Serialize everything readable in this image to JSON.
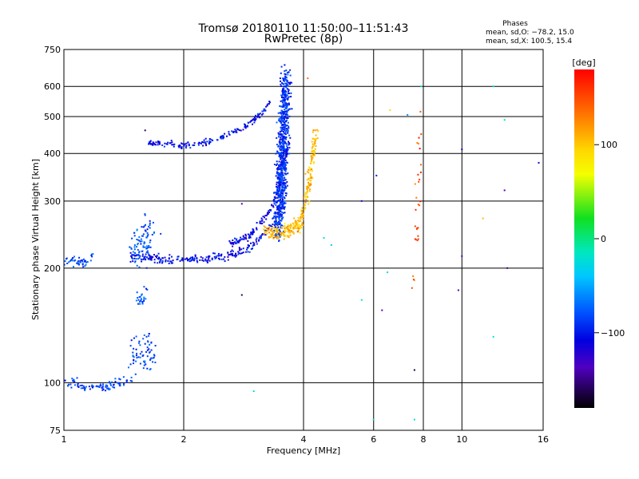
{
  "chart_data": {
    "type": "scatter",
    "title": "Tromsø 20180110 11:50:00–11:51:43",
    "subtitle": "RwPretec (8p)",
    "xlabel": "Frequency [MHz]",
    "ylabel": "Stationary phase Virtual Height [km]",
    "x_scale": "log2",
    "y_scale": "log",
    "xlim": [
      1,
      16
    ],
    "ylim": [
      75,
      750
    ],
    "x_ticks": [
      1,
      2,
      4,
      6,
      8,
      10,
      16
    ],
    "x_tick_labels": [
      "1",
      "2",
      "4",
      "6",
      "8",
      "10",
      "16"
    ],
    "y_ticks": [
      75,
      100,
      200,
      300,
      400,
      500,
      600,
      750
    ],
    "y_tick_labels": [
      "75",
      "100",
      "200",
      "300",
      "400",
      "500",
      "600",
      "750"
    ],
    "grid": true,
    "colorbar": {
      "label": "[deg]",
      "range": [
        -180,
        180
      ],
      "ticks": [
        100,
        0,
        -100
      ],
      "tick_labels": [
        "100",
        "0",
        "−100"
      ]
    },
    "stats": {
      "title": "Phases",
      "o_line": "mean, sd,O: −78.2, 15.0",
      "x_line": "mean, sd,X: 100.5, 15.4"
    },
    "series": [
      {
        "trace": [
          [
            1.0,
            100
          ],
          [
            1.05,
            101
          ],
          [
            1.15,
            97
          ],
          [
            1.3,
            98
          ],
          [
            1.42,
            100
          ],
          [
            1.47,
            103
          ]
        ],
        "phase": -85,
        "spread": [
          0.02,
          0.012
        ],
        "count": 90
      },
      {
        "trace": [
          [
            1.0,
            210
          ],
          [
            1.04,
            208
          ],
          [
            1.1,
            207
          ],
          [
            1.15,
            208
          ],
          [
            1.18,
            214
          ]
        ],
        "phase": -80,
        "spread": [
          0.01,
          0.012
        ],
        "count": 45
      },
      {
        "trace": [
          [
            1.48,
            115
          ],
          [
            1.52,
            120
          ],
          [
            1.58,
            118
          ],
          [
            1.65,
            122
          ],
          [
            1.7,
            118
          ]
        ],
        "phase": -85,
        "spread": [
          0.02,
          0.05
        ],
        "count": 70
      },
      {
        "trace": [
          [
            1.53,
            163
          ],
          [
            1.57,
            165
          ],
          [
            1.59,
            172
          ],
          [
            1.61,
            175
          ]
        ],
        "phase": -80,
        "spread": [
          0.01,
          0.02
        ],
        "count": 25
      },
      {
        "trace": [
          [
            1.5,
            225
          ],
          [
            1.6,
            235
          ],
          [
            1.7,
            245
          ]
        ],
        "phase": -80,
        "spread": [
          0.03,
          0.05
        ],
        "count": 90
      },
      {
        "trace": [
          [
            1.45,
            215
          ],
          [
            1.6,
            213
          ],
          [
            1.8,
            210
          ],
          [
            2.0,
            210
          ],
          [
            2.2,
            211
          ],
          [
            2.5,
            214
          ],
          [
            2.8,
            222
          ],
          [
            3.0,
            230
          ],
          [
            3.2,
            248
          ],
          [
            3.4,
            262
          ]
        ],
        "phase": -105,
        "spread": [
          0.008,
          0.012
        ],
        "count": 230
      },
      {
        "trace": [
          [
            2.6,
            232
          ],
          [
            2.9,
            242
          ],
          [
            3.1,
            260
          ],
          [
            3.3,
            285
          ],
          [
            3.4,
            305
          ],
          [
            3.5,
            340
          ],
          [
            3.6,
            390
          ],
          [
            3.7,
            440
          ]
        ],
        "phase": -110,
        "spread": [
          0.006,
          0.01
        ],
        "count": 140
      },
      {
        "trace": [
          [
            1.62,
            425
          ],
          [
            1.8,
            423
          ],
          [
            2.0,
            422
          ],
          [
            2.2,
            424
          ],
          [
            2.4,
            435
          ],
          [
            2.6,
            448
          ],
          [
            2.8,
            465
          ],
          [
            3.0,
            490
          ],
          [
            3.2,
            520
          ],
          [
            3.3,
            545
          ]
        ],
        "phase": -105,
        "spread": [
          0.006,
          0.008
        ],
        "count": 170
      },
      {
        "trace": [
          [
            3.45,
            250
          ],
          [
            3.52,
            340
          ],
          [
            3.55,
            430
          ],
          [
            3.58,
            510
          ],
          [
            3.6,
            580
          ],
          [
            3.62,
            630
          ]
        ],
        "phase": -92,
        "spread": [
          0.022,
          0.055
        ],
        "count": 800
      },
      {
        "trace": [
          [
            3.2,
            250
          ],
          [
            3.4,
            246
          ],
          [
            3.6,
            248
          ],
          [
            3.9,
            260
          ],
          [
            4.0,
            285
          ],
          [
            4.1,
            320
          ],
          [
            4.2,
            380
          ],
          [
            4.3,
            460
          ]
        ],
        "phase": 110,
        "spread": [
          0.012,
          0.018
        ],
        "count": 280
      },
      {
        "trace": [
          [
            7.6,
            180
          ],
          [
            7.7,
            260
          ],
          [
            7.8,
            350
          ],
          [
            7.85,
            450
          ]
        ],
        "phase": 150,
        "spread": [
          0.012,
          0.12
        ],
        "count": 30
      }
    ],
    "outliers": [
      [
        7.9,
        600,
        -20
      ],
      [
        12.0,
        600,
        -20
      ],
      [
        12.8,
        490,
        -10
      ],
      [
        6.1,
        350,
        -100
      ],
      [
        6.6,
        520,
        100
      ],
      [
        7.3,
        505,
        -60
      ],
      [
        10.0,
        410,
        -120
      ],
      [
        12.8,
        320,
        -140
      ],
      [
        11.3,
        270,
        110
      ],
      [
        10.0,
        215,
        -140
      ],
      [
        13.0,
        200,
        -150
      ],
      [
        9.8,
        175,
        -140
      ],
      [
        12.0,
        132,
        -20
      ],
      [
        6.3,
        155,
        -140
      ],
      [
        6.0,
        80,
        -20
      ],
      [
        7.6,
        80,
        -20
      ],
      [
        7.6,
        108,
        -170
      ],
      [
        6.5,
        195,
        -20
      ],
      [
        5.6,
        165,
        -20
      ],
      [
        3.0,
        95,
        -20
      ],
      [
        2.8,
        170,
        -160
      ],
      [
        2.8,
        295,
        -140
      ],
      [
        4.1,
        630,
        140
      ],
      [
        4.5,
        240,
        -20
      ],
      [
        4.7,
        230,
        -40
      ],
      [
        15.6,
        378,
        -120
      ],
      [
        5.6,
        300,
        -120
      ],
      [
        1.6,
        460,
        -160
      ]
    ]
  }
}
